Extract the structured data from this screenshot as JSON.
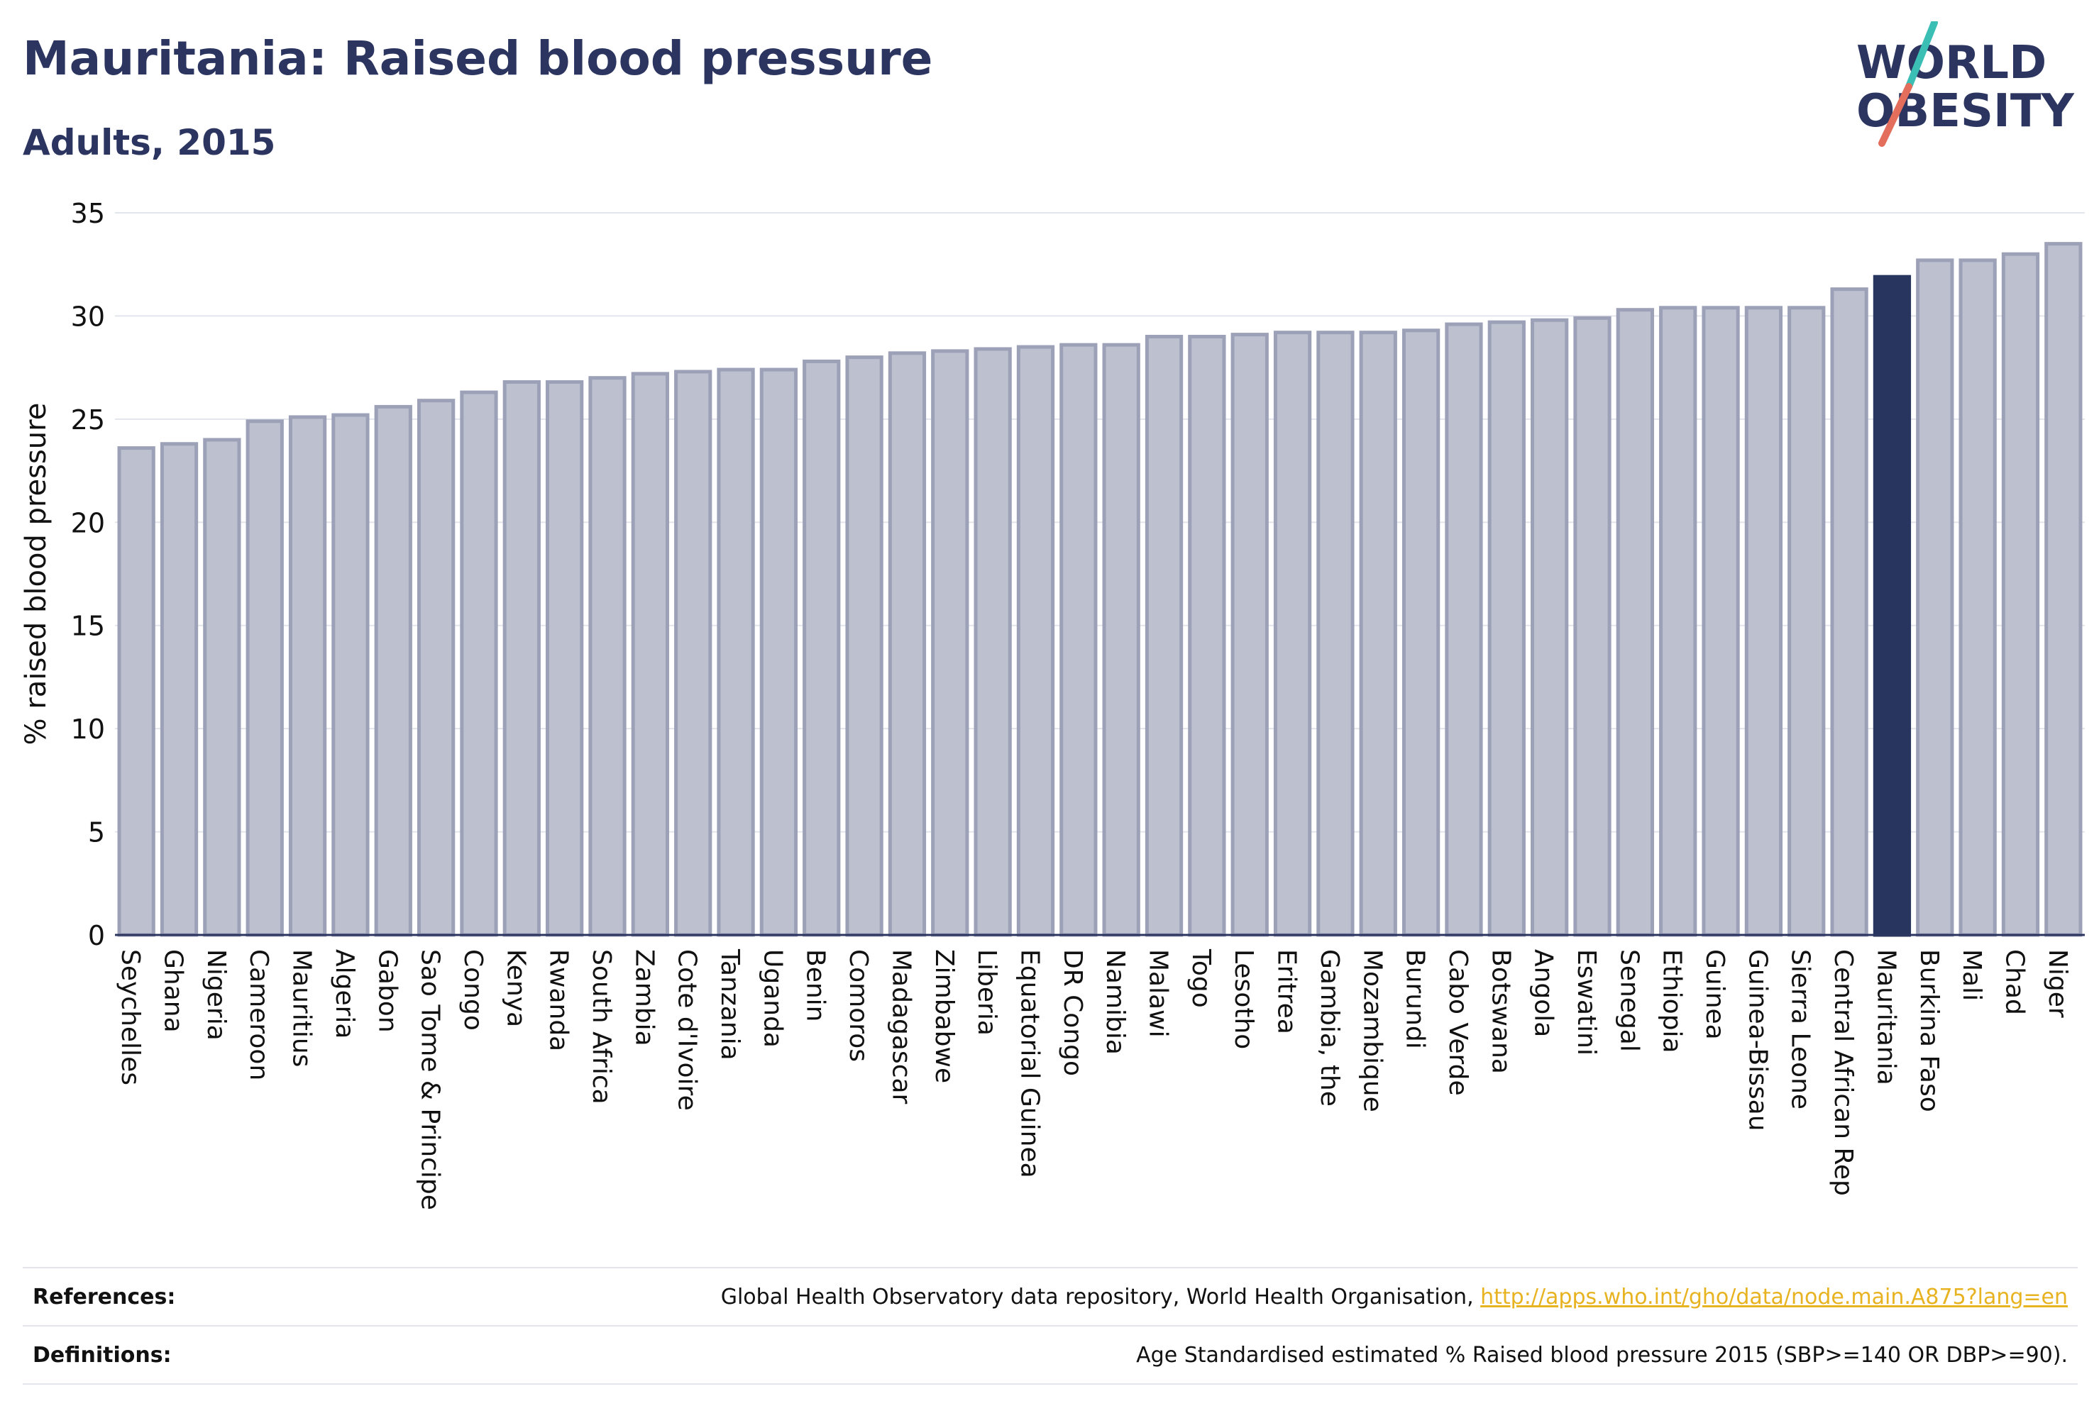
{
  "header": {
    "title": "Mauritania: Raised blood pressure",
    "subtitle": "Adults, 2015"
  },
  "logo": {
    "line1": "WORLD",
    "line2": "OBESITY",
    "colors": {
      "text": "#2b3560",
      "slash_teal": "#3bbfb5",
      "slash_coral": "#e46e5c"
    }
  },
  "chart_data": {
    "type": "bar",
    "ylabel": "% raised blood pressure",
    "ylim": [
      0,
      35
    ],
    "yticks": [
      0,
      5,
      10,
      15,
      20,
      25,
      30,
      35
    ],
    "grid": true,
    "highlight": "Mauritania",
    "colors": {
      "bar": "#bcc0cf",
      "bar_border": "#9ca1b8",
      "highlight": "#28365f"
    },
    "categories": [
      "Seychelles",
      "Ghana",
      "Nigeria",
      "Cameroon",
      "Mauritius",
      "Algeria",
      "Gabon",
      "Sao Tome & Principe",
      "Congo",
      "Kenya",
      "Rwanda",
      "South Africa",
      "Zambia",
      "Cote d'Ivoire",
      "Tanzania",
      "Uganda",
      "Benin",
      "Comoros",
      "Madagascar",
      "Zimbabwe",
      "Liberia",
      "Equatorial Guinea",
      "DR Congo",
      "Namibia",
      "Malawi",
      "Togo",
      "Lesotho",
      "Eritrea",
      "Gambia, the",
      "Mozambique",
      "Burundi",
      "Cabo Verde",
      "Botswana",
      "Angola",
      "Eswatini",
      "Senegal",
      "Ethiopia",
      "Guinea",
      "Guinea-Bissau",
      "Sierra Leone",
      "Central African Rep",
      "Mauritania",
      "Burkina Faso",
      "Mali",
      "Chad",
      "Niger"
    ],
    "values": [
      23.6,
      23.8,
      24.0,
      24.9,
      25.1,
      25.2,
      25.6,
      25.9,
      26.3,
      26.8,
      26.8,
      27.0,
      27.2,
      27.3,
      27.4,
      27.4,
      27.8,
      28.0,
      28.2,
      28.3,
      28.4,
      28.5,
      28.6,
      28.6,
      29.0,
      29.0,
      29.1,
      29.2,
      29.2,
      29.2,
      29.3,
      29.6,
      29.7,
      29.8,
      29.9,
      30.3,
      30.4,
      30.4,
      30.4,
      30.4,
      31.3,
      31.9,
      32.7,
      32.7,
      33.0,
      33.5
    ]
  },
  "footer": {
    "references_label": "References:",
    "references_text": "Global Health Observatory data repository, World Health Organisation, ",
    "references_link": "http://apps.who.int/gho/data/node.main.A875?lang=en",
    "definitions_label": "Definitions:",
    "definitions_text": "Age Standardised estimated % Raised blood pressure 2015 (SBP>=140 OR DBP>=90)."
  }
}
